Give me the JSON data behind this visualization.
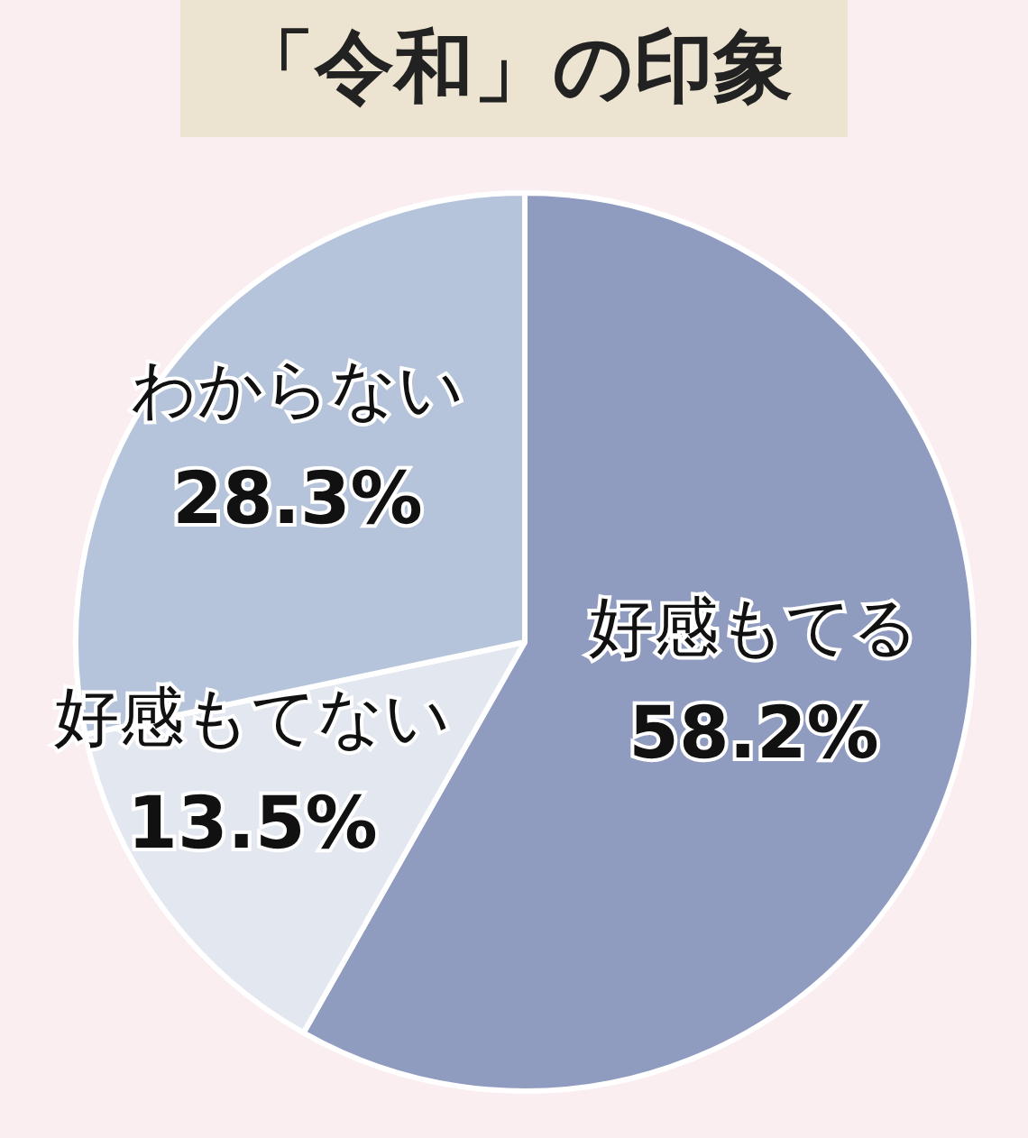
{
  "chart_data": {
    "type": "pie",
    "title": "「令和」の印象",
    "categories": [
      "好感もてる",
      "好感もてない",
      "わからない"
    ],
    "values": [
      58.2,
      13.5,
      28.3
    ],
    "colors": [
      "#8f9bbf",
      "#e2e7f0",
      "#b5c4da"
    ],
    "value_labels": [
      "58.2%",
      "13.5%",
      "28.3%"
    ]
  }
}
